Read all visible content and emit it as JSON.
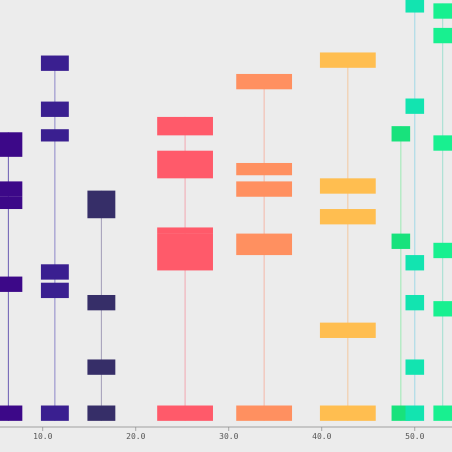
{
  "chart_data": {
    "type": "bar",
    "title": "",
    "xlabel": "",
    "ylabel": "",
    "xlim": [
      5.4,
      54.0
    ],
    "ylim": [
      0,
      100
    ],
    "grid": false,
    "legend": "none",
    "background": "#ececec",
    "x_ticks": [
      {
        "value": 10,
        "label": "10.0"
      },
      {
        "value": 20,
        "label": "20.0"
      },
      {
        "value": 30,
        "label": "30.0"
      },
      {
        "value": 40,
        "label": "40.0"
      },
      {
        "value": 50,
        "label": "50.0"
      }
    ],
    "series": [
      {
        "x": 6.3,
        "width": 3.0,
        "color": "#3c0888",
        "stem": "#6a5bb2",
        "segments": [
          [
            2,
            7
          ],
          [
            44,
            49
          ],
          [
            71,
            75
          ],
          [
            75,
            80
          ],
          [
            88,
            96
          ]
        ]
      },
      {
        "x": 11.3,
        "width": 3.0,
        "color": "#3a1f90",
        "stem": "#8c86c8",
        "segments": [
          [
            2,
            7
          ],
          [
            42,
            47
          ],
          [
            48,
            53
          ],
          [
            93,
            97
          ],
          [
            101,
            106
          ],
          [
            116,
            121
          ]
        ]
      },
      {
        "x": 16.3,
        "width": 3.0,
        "color": "#362e68",
        "stem": "#a29cb8",
        "segments": [
          [
            2,
            7
          ],
          [
            17,
            22
          ],
          [
            38,
            43
          ],
          [
            68,
            77
          ]
        ]
      },
      {
        "x": 25.3,
        "width": 6.0,
        "color": "#ff5a6a",
        "stem": "#f2a8b0",
        "segments": [
          [
            2,
            7
          ],
          [
            51,
            63
          ],
          [
            63,
            65
          ],
          [
            81,
            90
          ],
          [
            95,
            101
          ]
        ]
      },
      {
        "x": 33.8,
        "width": 6.0,
        "color": "#ff9060",
        "stem": "#f4b8a8",
        "segments": [
          [
            2,
            7
          ],
          [
            56,
            63
          ],
          [
            75,
            80
          ],
          [
            82,
            86
          ],
          [
            110,
            115
          ]
        ]
      },
      {
        "x": 42.8,
        "width": 6.0,
        "color": "#ffbe50",
        "stem": "#f4c8a0",
        "segments": [
          [
            2,
            7
          ],
          [
            29,
            34
          ],
          [
            66,
            71
          ],
          [
            76,
            81
          ],
          [
            117,
            122
          ]
        ]
      },
      {
        "x": 48.5,
        "width": 2.0,
        "color": "#18e27c",
        "stem": "#9aeab2",
        "segments": [
          [
            2,
            7
          ],
          [
            58,
            63
          ],
          [
            93,
            98
          ]
        ]
      },
      {
        "x": 50.0,
        "width": 2.0,
        "color": "#12e4b0",
        "stem": "#a0d8e6",
        "segments": [
          [
            2,
            7
          ],
          [
            17,
            22
          ],
          [
            38,
            43
          ],
          [
            51,
            56
          ],
          [
            102,
            107
          ],
          [
            135,
            140
          ],
          [
            144,
            149
          ]
        ]
      },
      {
        "x": 53.0,
        "width": 2.0,
        "color": "#18f090",
        "stem": "#a0e0d0",
        "segments": [
          [
            2,
            7
          ],
          [
            36,
            41
          ],
          [
            55,
            60
          ],
          [
            90,
            95
          ],
          [
            125,
            130
          ],
          [
            133,
            138
          ]
        ]
      }
    ]
  }
}
